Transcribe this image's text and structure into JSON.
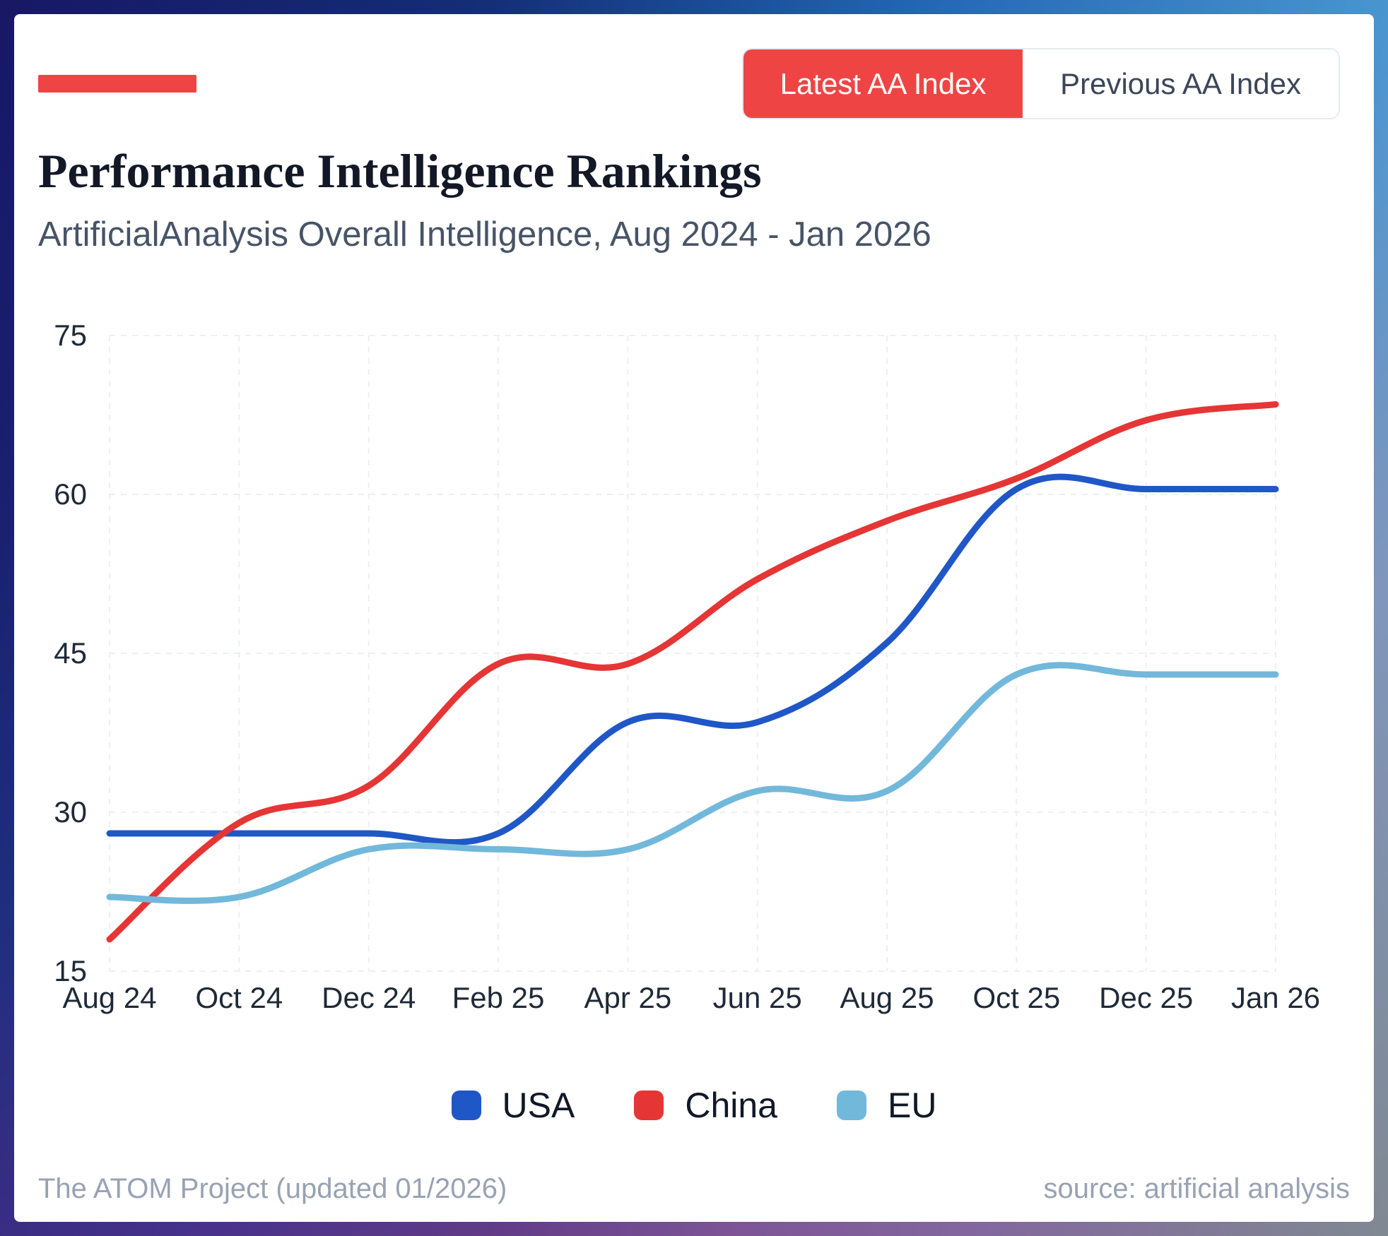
{
  "header": {
    "toggle": {
      "active_label": "Latest AA Index",
      "inactive_label": "Previous AA Index"
    },
    "title": "Performance Intelligence Rankings",
    "subtitle": "ArtificialAnalysis Overall Intelligence, Aug 2024 - Jan 2026"
  },
  "colors": {
    "accent": "#ef4444",
    "usa": "#2057c7",
    "china": "#e53535",
    "eu": "#72b8da",
    "grid": "#eceff3"
  },
  "legend": [
    {
      "label": "USA",
      "color_key": "usa"
    },
    {
      "label": "China",
      "color_key": "china"
    },
    {
      "label": "EU",
      "color_key": "eu"
    }
  ],
  "footer": {
    "left": "The ATOM Project (updated 01/2026)",
    "right": "source: artificial analysis"
  },
  "chart_data": {
    "type": "line",
    "title": "Performance Intelligence Rankings",
    "subtitle": "ArtificialAnalysis Overall Intelligence, Aug 2024 - Jan 2026",
    "x_ticks": [
      "Aug 24",
      "Oct 24",
      "Dec 24",
      "Feb 25",
      "Apr 25",
      "Jun 25",
      "Aug 25",
      "Oct 25",
      "Dec 25",
      "Jan 26"
    ],
    "x_start": "Aug 24",
    "x_end": "Jan 26",
    "y_ticks": [
      15,
      30,
      45,
      60,
      75
    ],
    "ylim": [
      15,
      75
    ],
    "grid": true,
    "legend_position": "bottom-center",
    "series": [
      {
        "name": "USA",
        "color_key": "usa",
        "values": [
          28,
          28,
          28,
          28,
          38.5,
          38.5,
          46,
          60.5,
          60.5,
          60.5
        ]
      },
      {
        "name": "China",
        "color_key": "china",
        "values": [
          18,
          29,
          32.5,
          44,
          44,
          52,
          57.5,
          61.5,
          67,
          68.5
        ]
      },
      {
        "name": "EU",
        "color_key": "eu",
        "values": [
          22,
          22,
          26.5,
          26.5,
          26.5,
          32,
          32,
          43,
          43,
          43
        ]
      }
    ]
  }
}
